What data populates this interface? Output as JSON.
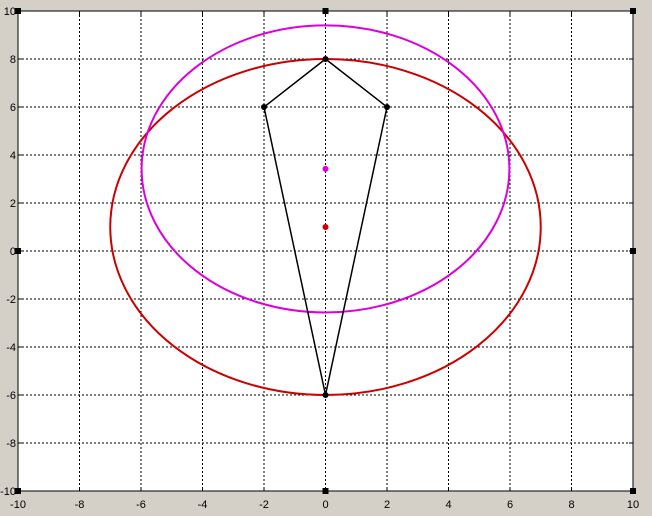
{
  "chart_data": {
    "type": "line",
    "title": "",
    "xlabel": "",
    "ylabel": "",
    "xlim": [
      -10,
      10
    ],
    "ylim": [
      -10,
      10
    ],
    "grid": true,
    "x_ticks": [
      -10,
      -8,
      -6,
      -4,
      -2,
      0,
      2,
      4,
      6,
      8,
      10
    ],
    "y_ticks": [
      -10,
      -8,
      -6,
      -4,
      -2,
      0,
      2,
      4,
      6,
      8,
      10
    ],
    "x_tick_labels": [
      "-10",
      "-8",
      "-6",
      "-4",
      "-2",
      "0",
      "2",
      "4",
      "6",
      "8",
      "10"
    ],
    "y_tick_labels": [
      "-10",
      "-8",
      "-6",
      "-4",
      "-2",
      "0",
      "2",
      "4",
      "6",
      "8",
      "10"
    ],
    "polygon": {
      "color": "#000000",
      "points": [
        [
          0,
          8
        ],
        [
          2,
          6
        ],
        [
          0,
          -6
        ],
        [
          -2,
          6
        ]
      ]
    },
    "circles": [
      {
        "center": [
          0,
          1
        ],
        "radius": 7.0,
        "color": "#cc0000"
      },
      {
        "center": [
          0,
          3.42
        ],
        "radius": 5.98,
        "color": "#dd00dd"
      }
    ],
    "center_points": [
      {
        "x": 0,
        "y": 1,
        "color": "#cc0000"
      },
      {
        "x": 0,
        "y": 3.42,
        "color": "#dd00dd"
      }
    ],
    "edge_handles": [
      [
        -10,
        10
      ],
      [
        0,
        10
      ],
      [
        10,
        10
      ],
      [
        -10,
        0
      ],
      [
        10,
        0
      ],
      [
        -10,
        -10
      ],
      [
        0,
        -10
      ],
      [
        10,
        -10
      ]
    ]
  }
}
